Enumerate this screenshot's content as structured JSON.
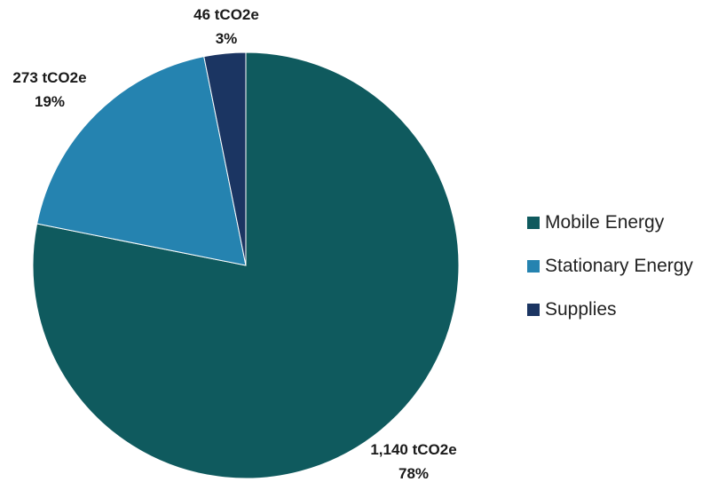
{
  "chart_data": {
    "type": "pie",
    "title": "",
    "unit": "tCO2e",
    "slices": [
      {
        "name": "Mobile Energy",
        "value": 1140,
        "value_label": "1,140 tCO2e",
        "percent_label": "78%",
        "color": "#0f5a5e"
      },
      {
        "name": "Stationary Energy",
        "value": 273,
        "value_label": "273 tCO2e",
        "percent_label": "19%",
        "color": "#2583b0"
      },
      {
        "name": "Supplies",
        "value": 46,
        "value_label": "46 tCO2e",
        "percent_label": "3%",
        "color": "#1b3562"
      }
    ],
    "start": "12 o'clock",
    "direction": "clockwise",
    "legend_position": "right"
  }
}
